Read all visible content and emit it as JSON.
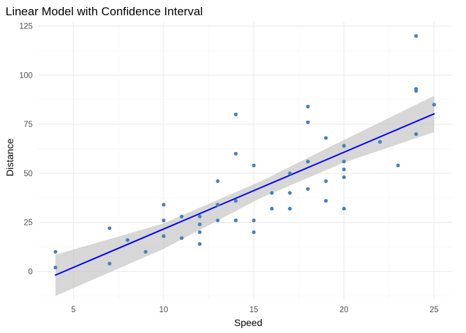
{
  "chart_data": {
    "type": "scatter",
    "title": "Linear Model with Confidence Interval",
    "xlabel": "Speed",
    "ylabel": "Distance",
    "xlim": [
      3.0,
      26.0
    ],
    "ylim": [
      -14.4,
      127.0
    ],
    "x_ticks": [
      5,
      10,
      15,
      20,
      25
    ],
    "y_ticks": [
      0,
      25,
      50,
      75,
      100,
      125
    ],
    "grid": true,
    "colors": {
      "points": "#4682b4",
      "fit_line": "#0000ff",
      "ribbon": "#bebebe"
    },
    "points": [
      [
        4,
        2
      ],
      [
        4,
        10
      ],
      [
        7,
        4
      ],
      [
        7,
        22
      ],
      [
        8,
        16
      ],
      [
        9,
        10
      ],
      [
        10,
        18
      ],
      [
        10,
        26
      ],
      [
        10,
        34
      ],
      [
        11,
        17
      ],
      [
        11,
        28
      ],
      [
        12,
        14
      ],
      [
        12,
        20
      ],
      [
        12,
        24
      ],
      [
        12,
        28
      ],
      [
        13,
        26
      ],
      [
        13,
        34
      ],
      [
        13,
        34
      ],
      [
        13,
        46
      ],
      [
        14,
        26
      ],
      [
        14,
        36
      ],
      [
        14,
        60
      ],
      [
        14,
        80
      ],
      [
        15,
        20
      ],
      [
        15,
        26
      ],
      [
        15,
        54
      ],
      [
        16,
        32
      ],
      [
        16,
        40
      ],
      [
        17,
        32
      ],
      [
        17,
        40
      ],
      [
        17,
        50
      ],
      [
        18,
        42
      ],
      [
        18,
        56
      ],
      [
        18,
        76
      ],
      [
        18,
        84
      ],
      [
        19,
        36
      ],
      [
        19,
        46
      ],
      [
        19,
        68
      ],
      [
        20,
        32
      ],
      [
        20,
        48
      ],
      [
        20,
        52
      ],
      [
        20,
        56
      ],
      [
        20,
        64
      ],
      [
        22,
        66
      ],
      [
        23,
        54
      ],
      [
        24,
        70
      ],
      [
        24,
        92
      ],
      [
        24,
        93
      ],
      [
        24,
        120
      ],
      [
        25,
        85
      ]
    ],
    "fit": {
      "x": [
        4,
        25
      ],
      "y": [
        -1.85,
        80.3
      ]
    },
    "confidence_band": {
      "x": [
        4,
        10,
        15.4,
        20,
        25
      ],
      "lower": [
        -12.5,
        11.5,
        37.5,
        55.5,
        71.0
      ],
      "upper": [
        8.5,
        24.5,
        46.0,
        67.0,
        89.5
      ]
    }
  }
}
